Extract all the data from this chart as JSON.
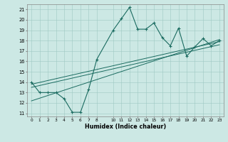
{
  "xlabel": "Humidex (Indice chaleur)",
  "xlim": [
    -0.5,
    23.5
  ],
  "ylim": [
    10.7,
    21.5
  ],
  "xticks": [
    0,
    1,
    2,
    3,
    4,
    5,
    6,
    7,
    8,
    10,
    11,
    12,
    13,
    14,
    15,
    16,
    17,
    18,
    19,
    20,
    21,
    22,
    23
  ],
  "yticks": [
    11,
    12,
    13,
    14,
    15,
    16,
    17,
    18,
    19,
    20,
    21
  ],
  "bg_color": "#cce8e4",
  "line_color": "#1a6b60",
  "series_x": [
    0,
    1,
    2,
    3,
    4,
    5,
    6,
    7,
    8,
    10,
    11,
    12,
    13,
    14,
    15,
    16,
    17,
    18,
    19,
    20,
    21,
    22,
    23
  ],
  "series_y": [
    14.0,
    13.0,
    13.0,
    13.0,
    12.4,
    11.1,
    11.1,
    13.3,
    16.2,
    19.0,
    20.1,
    21.2,
    19.1,
    19.1,
    19.7,
    18.3,
    17.5,
    19.2,
    16.5,
    17.4,
    18.2,
    17.5,
    18.0
  ],
  "reg_lines": [
    {
      "x0": 0,
      "y0": 13.8,
      "x1": 23,
      "y1": 17.9
    },
    {
      "x0": 0,
      "y0": 13.5,
      "x1": 23,
      "y1": 17.6
    },
    {
      "x0": 0,
      "y0": 12.2,
      "x1": 23,
      "y1": 18.1
    }
  ]
}
